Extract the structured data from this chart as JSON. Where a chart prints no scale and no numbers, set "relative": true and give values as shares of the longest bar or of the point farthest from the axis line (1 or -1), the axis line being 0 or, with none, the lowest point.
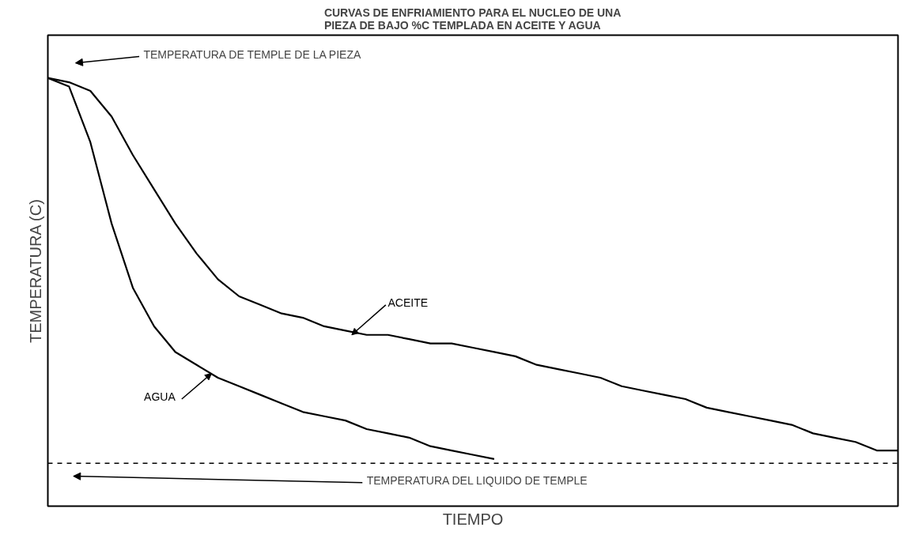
{
  "chart_data": {
    "type": "line",
    "relative": true,
    "title": "CURVAS DE ENFRIAMIENTO PARA EL NUCLEO DE UNA\nPIEZA DE BAJO %C TEMPLADA EN ACEITE Y AGUA",
    "xlabel": "TIEMPO",
    "ylabel": "TEMPERATURA (C)",
    "categories": [
      null,
      null,
      null,
      null,
      null,
      null,
      null,
      null,
      null,
      null,
      null,
      null,
      null,
      null,
      null,
      null,
      null,
      null,
      null,
      null,
      null,
      null,
      null,
      null,
      null,
      null,
      null,
      null,
      null,
      null,
      null,
      null,
      null,
      null,
      null,
      null,
      null,
      null,
      null,
      null,
      null
    ],
    "series": [
      {
        "name": "AGUA",
        "color": "#000000",
        "values": [
          1.0,
          0.98,
          0.85,
          0.66,
          0.51,
          0.42,
          0.36,
          0.33,
          0.3,
          0.28,
          0.26,
          0.24,
          0.22,
          0.21,
          0.2,
          0.18,
          0.17,
          0.16,
          0.14,
          0.13,
          0.12,
          0.11,
          null,
          null,
          null,
          null,
          null,
          null,
          null,
          null,
          null,
          null,
          null,
          null,
          null,
          null,
          null,
          null,
          null,
          null,
          null
        ]
      },
      {
        "name": "ACEITE",
        "color": "#000000",
        "values": [
          1.0,
          0.99,
          0.97,
          0.91,
          0.82,
          0.74,
          0.66,
          0.59,
          0.53,
          0.49,
          0.47,
          0.45,
          0.44,
          0.42,
          0.41,
          0.4,
          0.4,
          0.39,
          0.38,
          0.38,
          0.37,
          0.36,
          0.35,
          0.33,
          0.32,
          0.31,
          0.3,
          0.28,
          0.27,
          0.26,
          0.25,
          0.23,
          0.22,
          0.21,
          0.2,
          0.19,
          0.17,
          0.16,
          0.15,
          0.13,
          0.13
        ]
      }
    ],
    "ref_lines": [
      {
        "axis": "y",
        "value": 0.1,
        "label": "TEMPERATURA DEL LIQUIDO DE TEMPLE",
        "color": "#000000",
        "line_style": "dashed"
      }
    ],
    "annotations": [
      "TEMPERATURA DE TEMPLE DE LA PIEZA"
    ],
    "legend": false,
    "grid": false,
    "line_style": "solid",
    "marker": "none"
  }
}
